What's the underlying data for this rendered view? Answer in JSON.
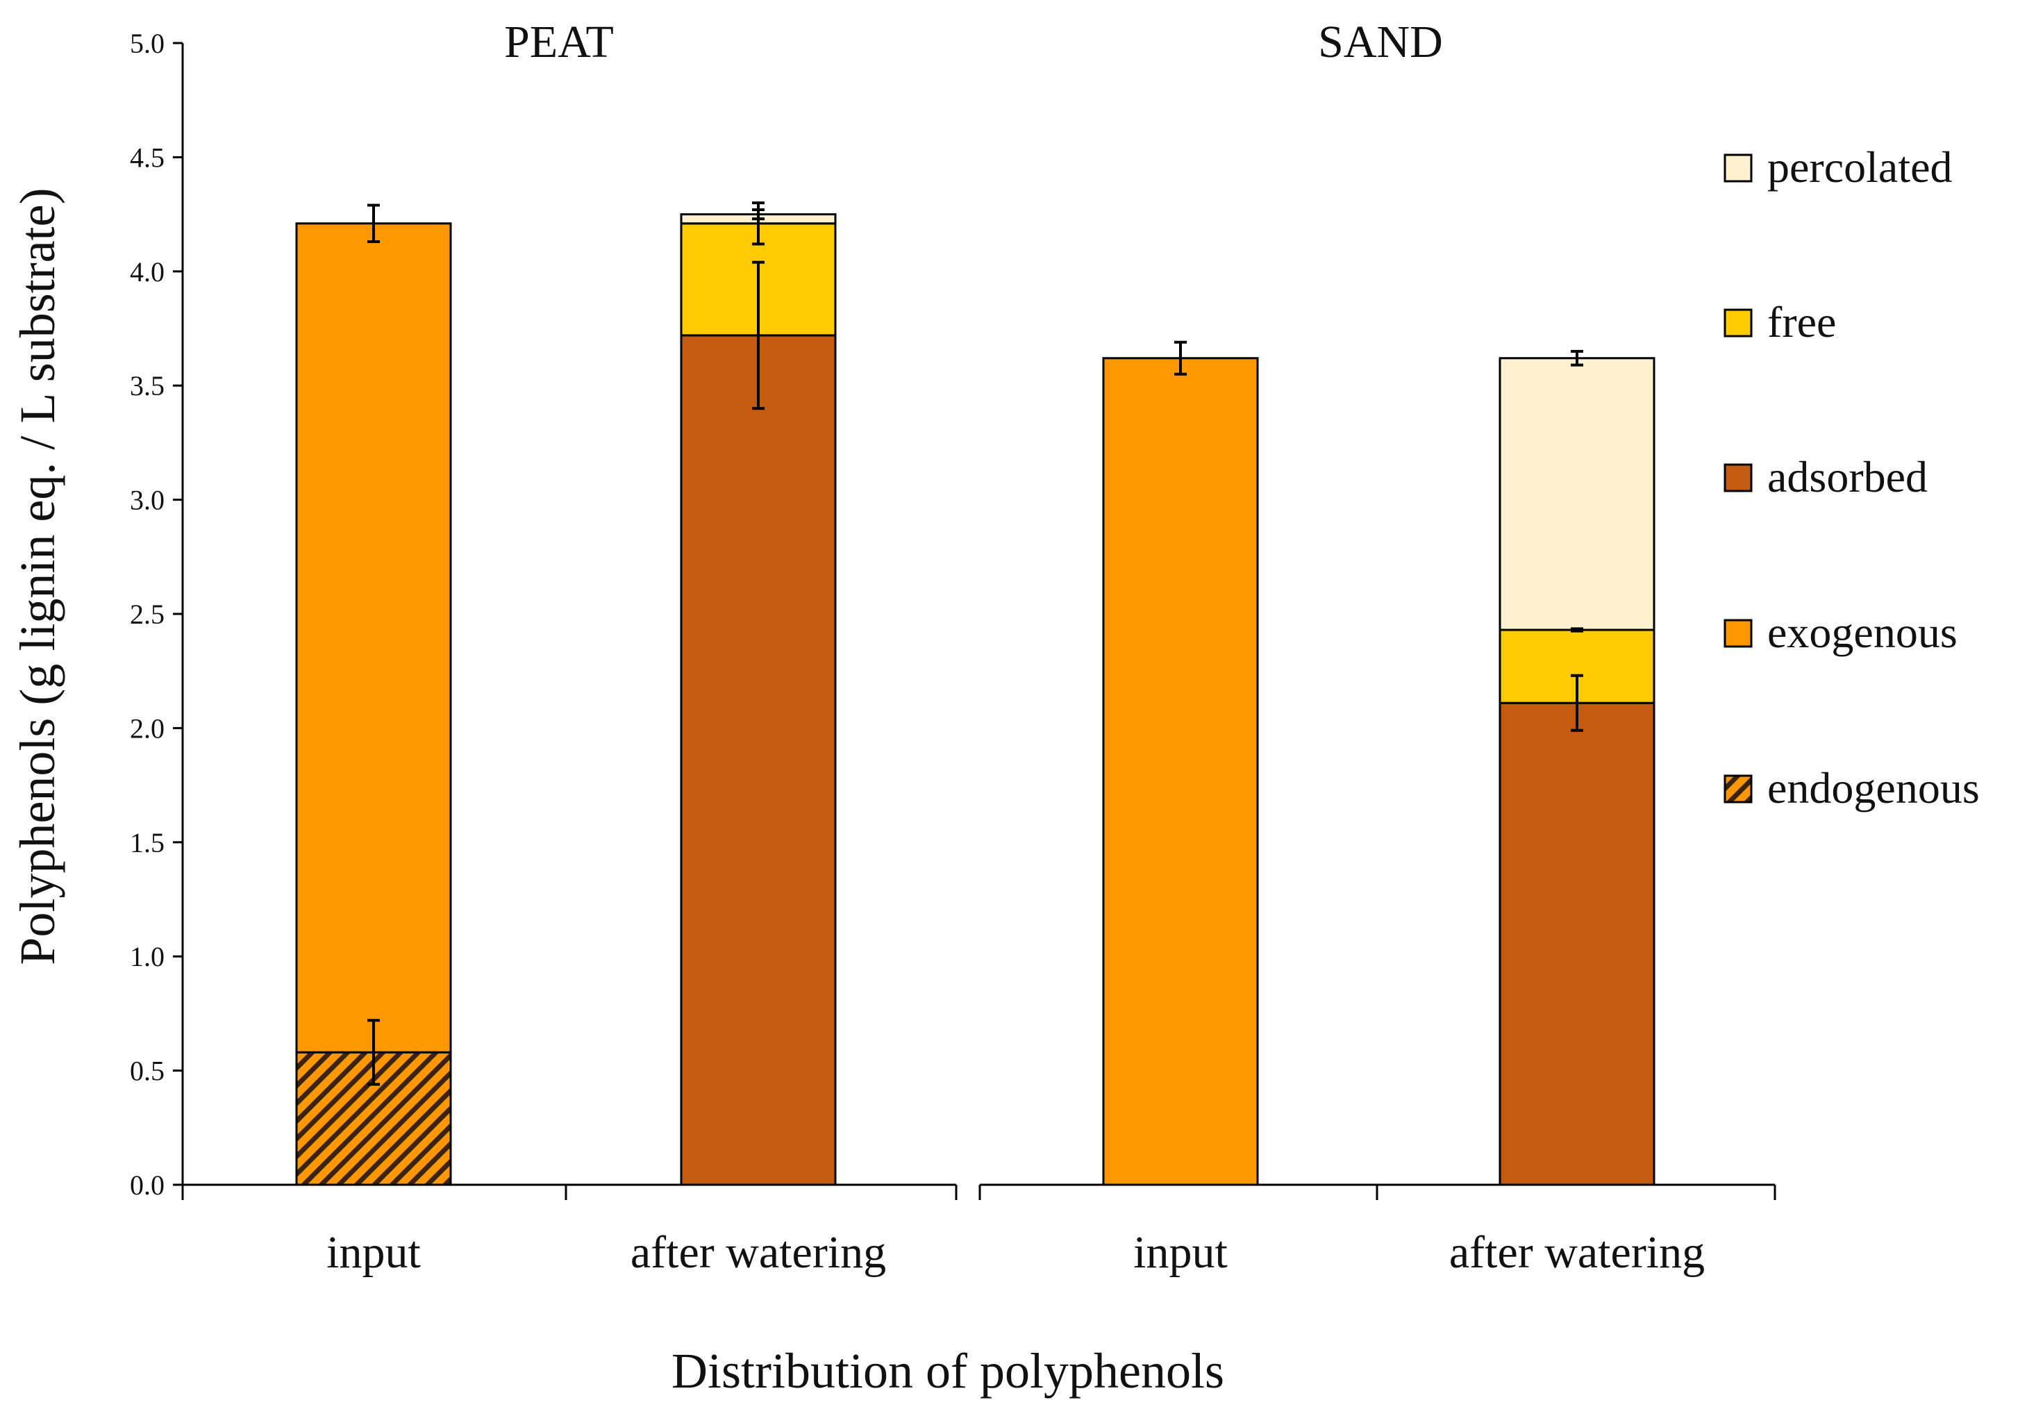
{
  "chart_data": {
    "type": "bar",
    "stacked": true,
    "ylabel": "Polyphenols  (g lignin eq. / L substrate)",
    "xlabel": "Distribution of  polyphenols",
    "ylim": [
      0,
      5
    ],
    "yticks": [
      "0.0",
      "0.5",
      "1.0",
      "1.5",
      "2.0",
      "2.5",
      "3.0",
      "3.5",
      "4.0",
      "4.5",
      "5.0"
    ],
    "legend_position": "right",
    "groups": [
      {
        "name": "PEAT",
        "bars": [
          {
            "category": "input",
            "segments": [
              {
                "series": "endogenous",
                "value": 0.58,
                "error": 0.14
              },
              {
                "series": "exogenous",
                "value": 3.63,
                "error": 0.08
              }
            ]
          },
          {
            "category": "after watering",
            "segments": [
              {
                "series": "adsorbed",
                "value": 3.72,
                "error": 0.32
              },
              {
                "series": "free",
                "value": 0.49,
                "error": 0.09
              },
              {
                "series": "percolated",
                "value": 0.04,
                "error": 0.02
              }
            ]
          }
        ]
      },
      {
        "name": "SAND",
        "bars": [
          {
            "category": "input",
            "segments": [
              {
                "series": "exogenous",
                "value": 3.62,
                "error": 0.07
              }
            ]
          },
          {
            "category": "after watering",
            "segments": [
              {
                "series": "adsorbed",
                "value": 2.11,
                "error": 0.12
              },
              {
                "series": "free",
                "value": 0.32,
                "error": 0.005
              },
              {
                "series": "percolated",
                "value": 1.19,
                "error": 0.03
              }
            ]
          }
        ]
      }
    ],
    "series": [
      {
        "name": "percolated",
        "color": "#fdf1cf",
        "pattern": "solid"
      },
      {
        "name": "free",
        "color": "#fecb00",
        "pattern": "solid"
      },
      {
        "name": "adsorbed",
        "color": "#c55a11",
        "pattern": "solid"
      },
      {
        "name": "exogenous",
        "color": "#ff9800",
        "pattern": "solid"
      },
      {
        "name": "endogenous",
        "color": "#ff9800",
        "pattern": "hatched"
      }
    ]
  }
}
